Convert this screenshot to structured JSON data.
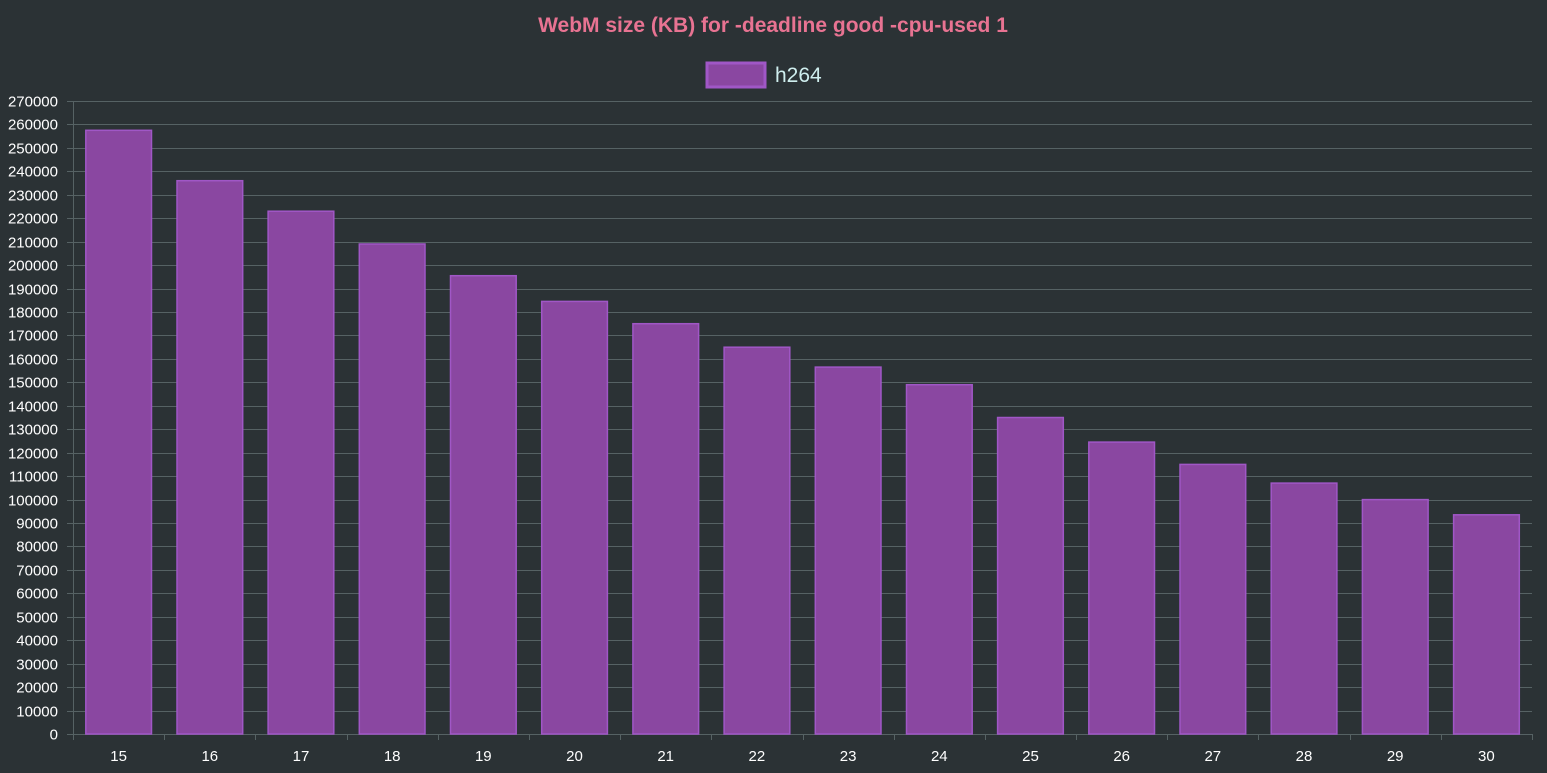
{
  "colors": {
    "background": "#2b3235",
    "title": "#e87392",
    "legend_text": "#cfeeee",
    "tick_text": "#ffffff",
    "grid": "#566264",
    "bar_fill": "#8a47a1",
    "bar_stroke": "#a057c6"
  },
  "chart_data": {
    "type": "bar",
    "title": "WebM size (KB) for -deadline good -cpu-used 1",
    "xlabel": "",
    "ylabel": "",
    "categories": [
      "15",
      "16",
      "17",
      "18",
      "19",
      "20",
      "21",
      "22",
      "23",
      "24",
      "25",
      "26",
      "27",
      "28",
      "29",
      "30"
    ],
    "series": [
      {
        "name": "h264",
        "values": [
          257500,
          236000,
          223000,
          209000,
          195500,
          184500,
          175000,
          165000,
          156500,
          149000,
          135000,
          124500,
          115000,
          107000,
          100000,
          93500
        ]
      }
    ],
    "ylim": [
      0,
      270000
    ],
    "ytick_step": 10000,
    "grid": true,
    "legend_position": "top-center"
  }
}
